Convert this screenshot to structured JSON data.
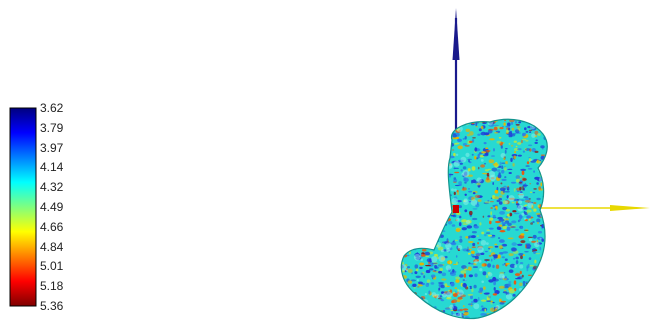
{
  "legend": {
    "labels": [
      "3.62",
      "3.79",
      "3.97",
      "4.14",
      "4.32",
      "4.49",
      "4.66",
      "4.84",
      "5.01",
      "5.18",
      "5.36"
    ],
    "colors": [
      "#00007f",
      "#0000ff",
      "#007fff",
      "#00ffff",
      "#7fff7f",
      "#ffff00",
      "#ff7f00",
      "#ff0000",
      "#7f0000"
    ]
  },
  "axes": {
    "y_axis_color": "#1a1a8c",
    "x_axis_color": "#e8d800",
    "origin_color": "#cc0000"
  },
  "surface": {
    "base_color": "#27d9d2",
    "speckle_colors": [
      "#1f3fd8",
      "#2a7fe8",
      "#e8b400",
      "#e85a10",
      "#b8e640",
      "#8a1a1a"
    ]
  }
}
